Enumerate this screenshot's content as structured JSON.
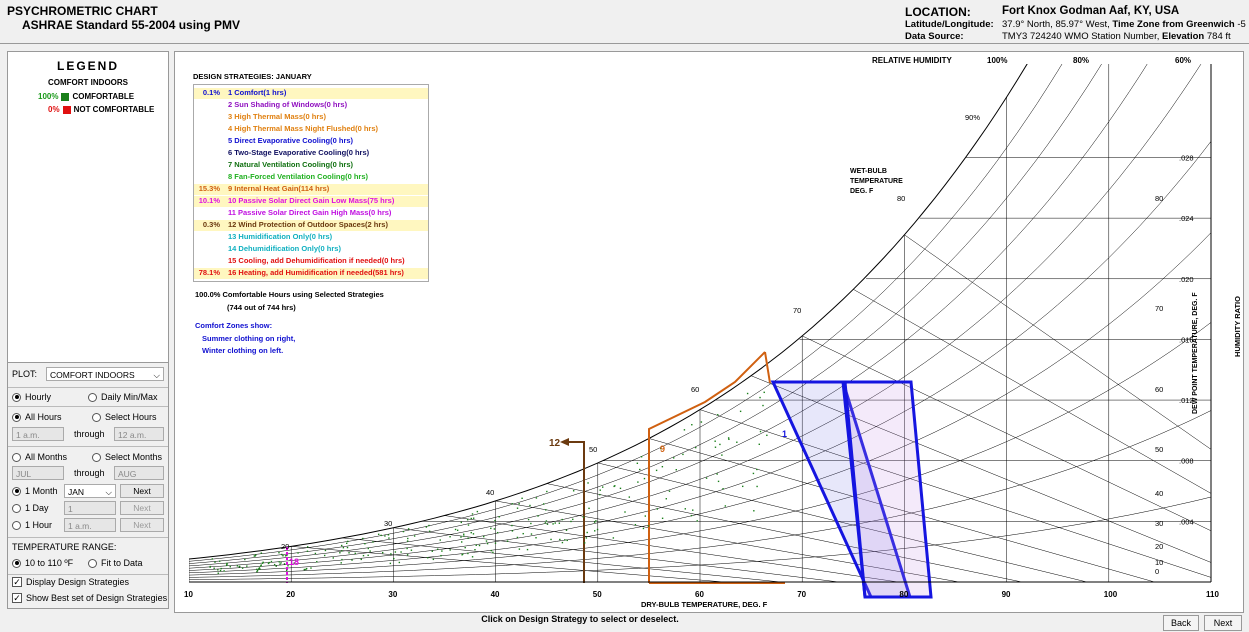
{
  "header": {
    "title": "PSYCHROMETRIC CHART",
    "subtitle": "ASHRAE Standard 55-2004 using PMV",
    "location_label": "LOCATION:",
    "location_value": "Fort Knox Godman Aaf, KY, USA",
    "latlong_label": "Latitude/Longitude:",
    "latlong_value": "37.9° North, 85.97° West,",
    "tz_label": "Time Zone from Greenwich",
    "tz_value": "-5",
    "source_label": "Data Source:",
    "source_value": "TMY3    724240 WMO Station Number,",
    "elev_label": "Elevation",
    "elev_value": "784 ft"
  },
  "legend": {
    "title": "LEGEND",
    "subtitle": "COMFORT INDOORS",
    "items": [
      {
        "pct": "100%",
        "label": "COMFORTABLE",
        "color": "#1a7f1a"
      },
      {
        "pct": "0%",
        "label": "NOT COMFORTABLE",
        "color": "#e01010"
      }
    ]
  },
  "controls": {
    "plot_label": "PLOT:",
    "plot_value": "COMFORT INDOORS",
    "hourly": "Hourly",
    "daily": "Daily Min/Max",
    "all_hours": "All Hours",
    "select_hours": "Select Hours",
    "hour_from": "1 a.m.",
    "through": "through",
    "hour_to": "12 a.m.",
    "all_months": "All Months",
    "select_months": "Select Months",
    "month_from": "JUL",
    "month_to": "AUG",
    "one_month": "1 Month",
    "month_value": "JAN",
    "next": "Next",
    "one_day": "1 Day",
    "day_value": "1",
    "one_hour": "1 Hour",
    "hour_value": "1 a.m.",
    "temp_range_label": "TEMPERATURE RANGE:",
    "range_a": "10 to 110 ºF",
    "range_b": "Fit to Data",
    "display_strategies": "Display Design Strategies",
    "best_set": "Show Best set of Design Strategies"
  },
  "strategies": {
    "heading": "DESIGN STRATEGIES: JANUARY",
    "items": [
      {
        "pct": "0.1%",
        "label": "1  Comfort(1 hrs)",
        "color": "#1010d0",
        "hl": true
      },
      {
        "pct": "",
        "label": "2  Sun Shading of Windows(0 hrs)",
        "color": "#9010c0",
        "hl": false
      },
      {
        "pct": "",
        "label": "3  High Thermal Mass(0 hrs)",
        "color": "#e08010",
        "hl": false
      },
      {
        "pct": "",
        "label": "4  High Thermal Mass Night Flushed(0 hrs)",
        "color": "#e08010",
        "hl": false
      },
      {
        "pct": "",
        "label": "5  Direct Evaporative Cooling(0 hrs)",
        "color": "#1010d0",
        "hl": false
      },
      {
        "pct": "",
        "label": "6  Two-Stage Evaporative Cooling(0 hrs)",
        "color": "#101060",
        "hl": false
      },
      {
        "pct": "",
        "label": "7  Natural Ventilation Cooling(0 hrs)",
        "color": "#107010",
        "hl": false
      },
      {
        "pct": "",
        "label": "8  Fan-Forced Ventilation Cooling(0 hrs)",
        "color": "#20b020",
        "hl": false
      },
      {
        "pct": "15.3%",
        "label": "9  Internal Heat Gain(114 hrs)",
        "color": "#d06010",
        "hl": true
      },
      {
        "pct": "10.1%",
        "label": "10  Passive Solar Direct Gain Low Mass(75 hrs)",
        "color": "#e010e0",
        "hl": true
      },
      {
        "pct": "",
        "label": "11  Passive Solar Direct Gain High Mass(0 hrs)",
        "color": "#c010e0",
        "hl": false
      },
      {
        "pct": "0.3%",
        "label": "12  Wind Protection of Outdoor Spaces(2 hrs)",
        "color": "#6b3a10",
        "hl": true
      },
      {
        "pct": "",
        "label": "13  Humidification Only(0 hrs)",
        "color": "#10b0c0",
        "hl": false
      },
      {
        "pct": "",
        "label": "14  Dehumidification Only(0 hrs)",
        "color": "#10b0c0",
        "hl": false
      },
      {
        "pct": "",
        "label": "15  Cooling, add Dehumidification if needed(0 hrs)",
        "color": "#e01010",
        "hl": false
      },
      {
        "pct": "78.1%",
        "label": "16  Heating, add Humidification if needed(581 hrs)",
        "color": "#e01010",
        "hl": true
      }
    ],
    "total_line1": "100.0%  Comfortable Hours using Selected Strategies",
    "total_line2": "(744 out of 744 hrs)",
    "zones_title": "Comfort Zones show:",
    "zones_summer": "Summer clothing on right,",
    "zones_winter": "Winter clothing on left."
  },
  "chart": {
    "rh_title": "RELATIVE HUMIDITY",
    "rh_labels": [
      "100%",
      "80%",
      "60%",
      "90%"
    ],
    "wb_title": [
      "WET-BULB",
      "TEMPERATURE",
      "DEG. F"
    ],
    "wb_labels": [
      "80",
      "70",
      "60",
      "50",
      "40",
      "30",
      "20"
    ],
    "x_title": "DRY-BULB TEMPERATURE, DEG. F",
    "x_ticks": [
      "10",
      "20",
      "30",
      "40",
      "50",
      "60",
      "70",
      "80",
      "90",
      "100",
      "110"
    ],
    "hr_title": "HUMIDITY RATIO",
    "hr_ticks": [
      ".028",
      ".024",
      ".020",
      ".016",
      ".012",
      ".008",
      ".004"
    ],
    "dp_title": "DEW POINT TEMPERATURE, DEG. F",
    "dp_ticks": [
      "80",
      "70",
      "60",
      "50",
      "40",
      "30",
      "20",
      "10",
      "0"
    ],
    "marker_12": "12",
    "marker_9": "9",
    "marker_1": "1",
    "marker_18": "18"
  },
  "footer": {
    "hint": "Click on Design Strategy to select or deselect.",
    "back": "Back",
    "next": "Next"
  }
}
